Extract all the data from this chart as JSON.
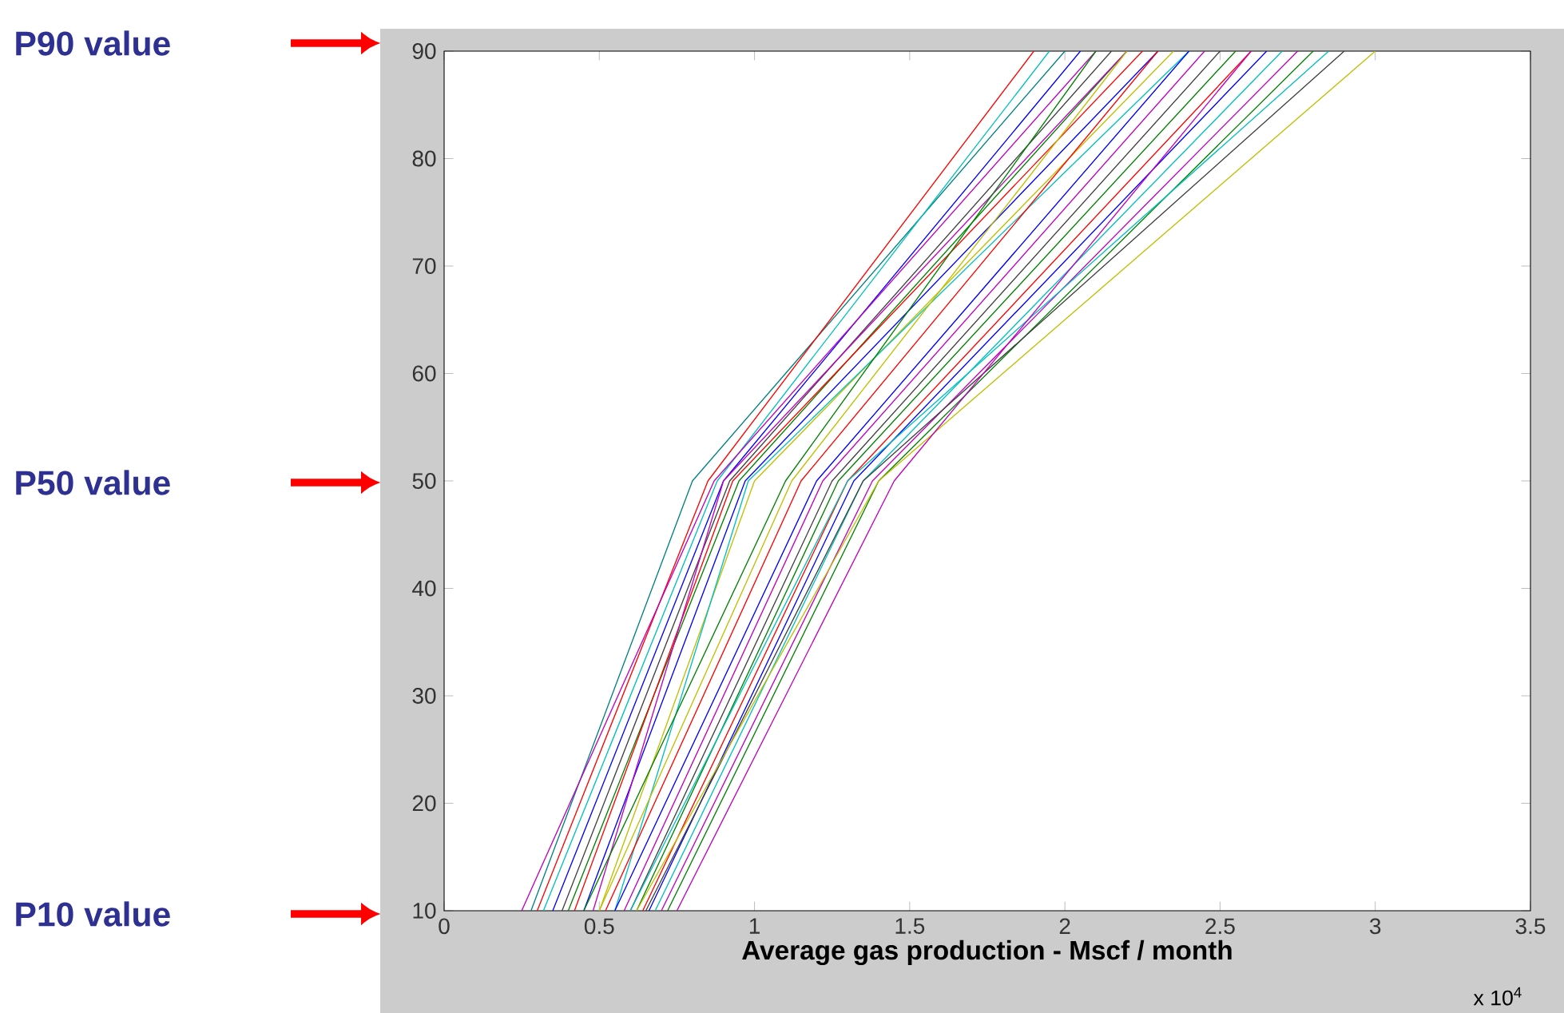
{
  "chart_data": {
    "type": "line",
    "xlabel": "Average gas production - Mscf / month",
    "annotations": [
      "P90 value",
      "P50 value",
      "P10 value",
      "x 10$^{4}$"
    ],
    "xlim": [
      0,
      3.5
    ],
    "ylim": [
      10,
      90
    ],
    "xticks": [
      0,
      0.5,
      1,
      1.5,
      2,
      2.5,
      3,
      3.5
    ],
    "yticks": [
      10,
      20,
      30,
      40,
      50,
      60,
      70,
      80,
      90
    ],
    "grid": false,
    "marker": "none",
    "line_style": "solid",
    "series": [
      {
        "color": "#008080",
        "x": [
          0.28,
          0.8,
          2.0
        ],
        "values": [
          10,
          50,
          90
        ]
      },
      {
        "color": "#ff0000",
        "x": [
          0.3,
          0.85,
          1.9
        ],
        "values": [
          10,
          50,
          90
        ]
      },
      {
        "color": "#00bfbf",
        "x": [
          0.32,
          0.88,
          1.95
        ],
        "values": [
          10,
          50,
          90
        ]
      },
      {
        "color": "#0000ff",
        "x": [
          0.35,
          0.9,
          2.05
        ],
        "values": [
          10,
          50,
          90
        ]
      },
      {
        "color": "#bf00bf",
        "x": [
          0.25,
          0.87,
          2.1
        ],
        "values": [
          10,
          50,
          90
        ]
      },
      {
        "color": "#404040",
        "x": [
          0.38,
          0.92,
          2.15
        ],
        "values": [
          10,
          50,
          90
        ]
      },
      {
        "color": "#008000",
        "x": [
          0.4,
          0.95,
          2.2
        ],
        "values": [
          10,
          50,
          90
        ]
      },
      {
        "color": "#ff0000",
        "x": [
          0.42,
          0.93,
          2.25
        ],
        "values": [
          10,
          50,
          90
        ]
      },
      {
        "color": "#0000ff",
        "x": [
          0.45,
          0.97,
          2.3
        ],
        "values": [
          10,
          50,
          90
        ]
      },
      {
        "color": "#bfbf00",
        "x": [
          0.5,
          1.0,
          2.35
        ],
        "values": [
          10,
          50,
          90
        ]
      },
      {
        "color": "#00bfbf",
        "x": [
          0.55,
          0.98,
          2.4
        ],
        "values": [
          10,
          50,
          90
        ]
      },
      {
        "color": "#bf00bf",
        "x": [
          0.48,
          0.9,
          2.2
        ],
        "values": [
          10,
          50,
          90
        ]
      },
      {
        "color": "#008000",
        "x": [
          0.45,
          1.1,
          2.1
        ],
        "values": [
          10,
          50,
          90
        ]
      },
      {
        "color": "#bfbf00",
        "x": [
          0.5,
          1.12,
          2.2
        ],
        "values": [
          10,
          50,
          90
        ]
      },
      {
        "color": "#ff0000",
        "x": [
          0.52,
          1.15,
          2.3
        ],
        "values": [
          10,
          50,
          90
        ]
      },
      {
        "color": "#0000ff",
        "x": [
          0.55,
          1.2,
          2.4
        ],
        "values": [
          10,
          50,
          90
        ]
      },
      {
        "color": "#bf00bf",
        "x": [
          0.58,
          1.22,
          2.45
        ],
        "values": [
          10,
          50,
          90
        ]
      },
      {
        "color": "#404040",
        "x": [
          0.6,
          1.25,
          2.5
        ],
        "values": [
          10,
          50,
          90
        ]
      },
      {
        "color": "#008000",
        "x": [
          0.62,
          1.27,
          2.55
        ],
        "values": [
          10,
          50,
          90
        ]
      },
      {
        "color": "#ff0000",
        "x": [
          0.64,
          1.3,
          2.6
        ],
        "values": [
          10,
          50,
          90
        ]
      },
      {
        "color": "#0000ff",
        "x": [
          0.66,
          1.32,
          2.65
        ],
        "values": [
          10,
          50,
          90
        ]
      },
      {
        "color": "#00bfbf",
        "x": [
          0.68,
          1.35,
          2.7
        ],
        "values": [
          10,
          50,
          90
        ]
      },
      {
        "color": "#bf00bf",
        "x": [
          0.7,
          1.38,
          2.75
        ],
        "values": [
          10,
          50,
          90
        ]
      },
      {
        "color": "#008000",
        "x": [
          0.72,
          1.4,
          2.8
        ],
        "values": [
          10,
          50,
          90
        ]
      },
      {
        "color": "#404040",
        "x": [
          0.65,
          1.35,
          2.9
        ],
        "values": [
          10,
          50,
          90
        ]
      },
      {
        "color": "#00bfbf",
        "x": [
          0.6,
          1.3,
          2.85
        ],
        "values": [
          10,
          50,
          90
        ]
      },
      {
        "color": "#bfbf00",
        "x": [
          0.62,
          1.4,
          3.0
        ],
        "values": [
          10,
          50,
          90
        ]
      },
      {
        "color": "#bf00bf",
        "x": [
          0.75,
          1.45,
          2.6
        ],
        "values": [
          10,
          50,
          90
        ]
      }
    ]
  }
}
